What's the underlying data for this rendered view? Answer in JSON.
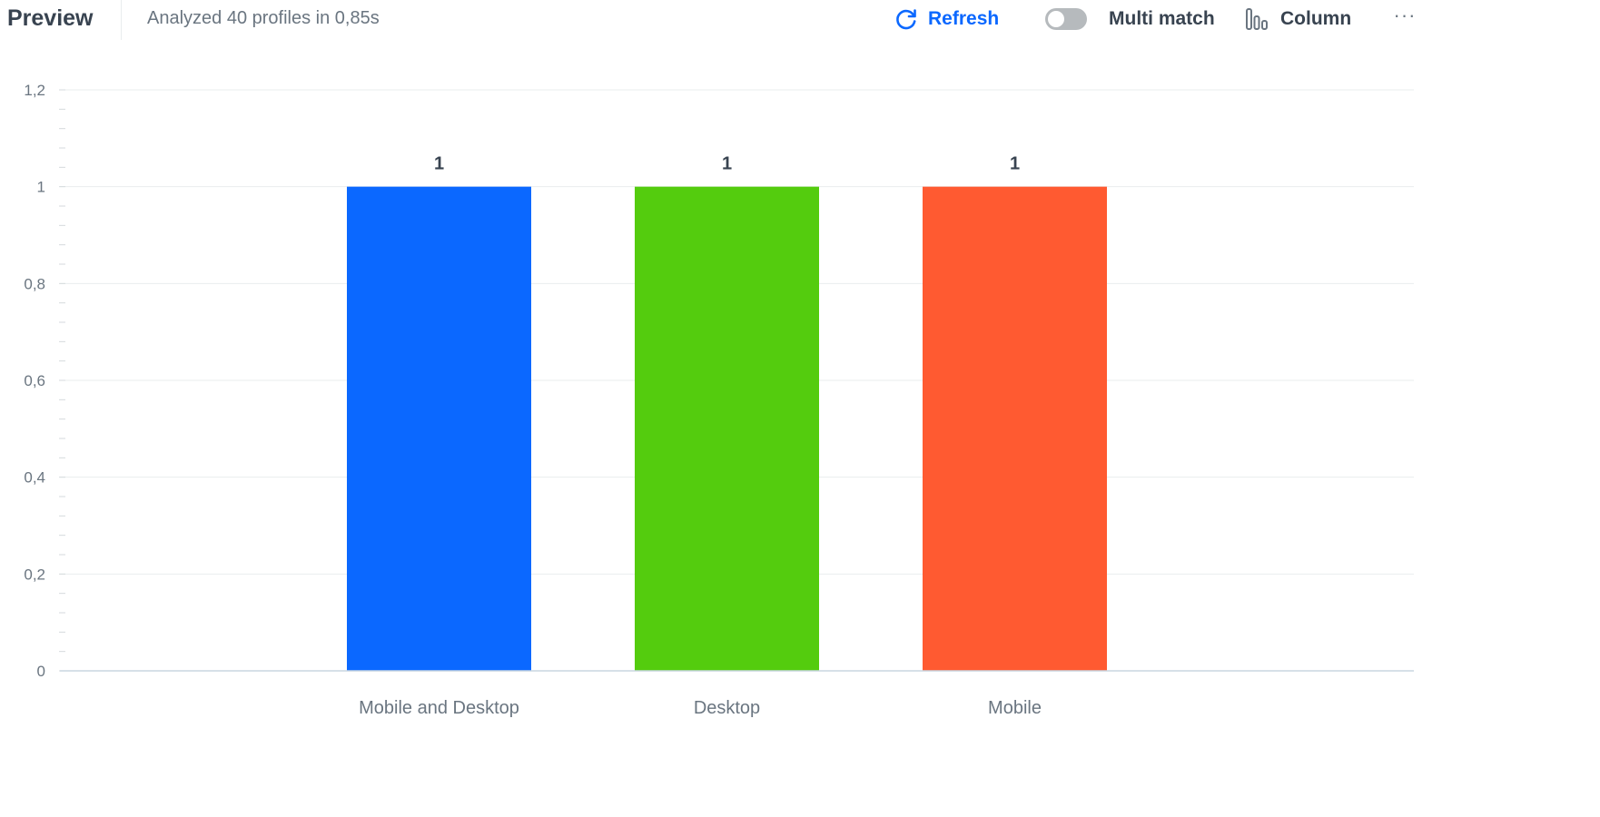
{
  "header": {
    "title": "Preview",
    "subtitle": "Analyzed 40 profiles in 0,85s"
  },
  "toolbar": {
    "refresh_label": "Refresh",
    "multi_match_label": "Multi match",
    "multi_match_on": false,
    "column_label": "Column",
    "more_label": "···",
    "accent_color": "#0b68ff"
  },
  "chart_data": {
    "type": "bar",
    "categories": [
      "Mobile and Desktop",
      "Desktop",
      "Mobile"
    ],
    "values": [
      1,
      1,
      1
    ],
    "data_labels": [
      "1",
      "1",
      "1"
    ],
    "colors": [
      "#0b68ff",
      "#54cc0e",
      "#ff5a31"
    ],
    "title": "",
    "xlabel": "",
    "ylabel": "",
    "ylim": [
      0,
      1.2
    ],
    "y_ticks": [
      0,
      0.2,
      0.4,
      0.6,
      0.8,
      1,
      1.2
    ],
    "y_tick_labels": [
      "0",
      "0,2",
      "0,4",
      "0,6",
      "0,8",
      "1",
      "1,2"
    ],
    "grid": true,
    "legend": "none"
  }
}
